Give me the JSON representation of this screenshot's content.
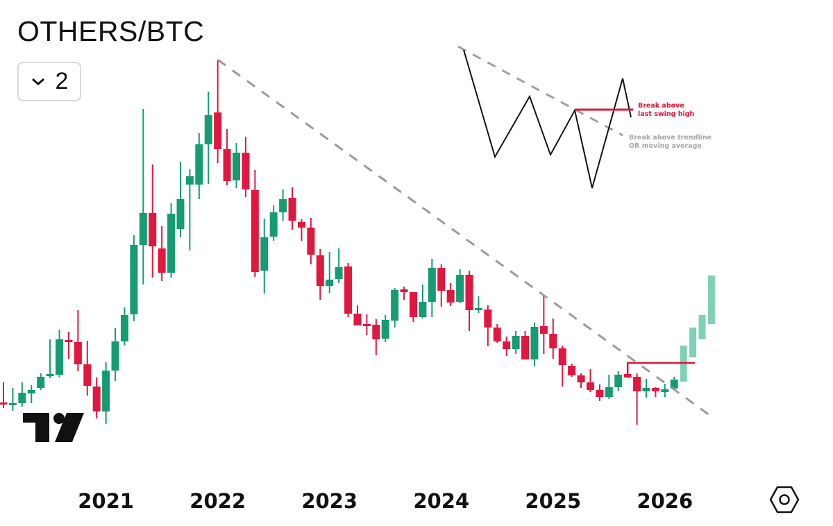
{
  "header": {
    "title": "OTHERS/BTC",
    "interval_value": "2",
    "interval_icon": "chevron-down-icon"
  },
  "footer": {
    "settings_icon": "hexagon-settings-icon",
    "logo": "TradingView"
  },
  "colors": {
    "up": "#169c72",
    "down": "#e0173f",
    "projected": "#80d0b4",
    "trendline": "#9a9a9a",
    "swing_line": "#d8173a"
  },
  "annotations": {
    "swing_high_line1": "Break above",
    "swing_high_line2": "last swing high",
    "trendline_line1": "Break above trendline",
    "trendline_line2": "OR moving average"
  },
  "chart_data": {
    "type": "candlestick",
    "title": "OTHERS/BTC",
    "y_scale": "unlabeled price index",
    "ylim": [
      -59,
      320
    ],
    "grid": false,
    "x_tick_labels": [
      "2021",
      "2022",
      "2023",
      "2024",
      "2025",
      "2026"
    ],
    "start_month": "2020-02",
    "interval": "monthly",
    "ohlc": [
      [
        30,
        44.5,
        26,
        28.5
      ],
      [
        28.5,
        40.5,
        24,
        29.5
      ],
      [
        29.5,
        44.5,
        27,
        37
      ],
      [
        36.5,
        42.5,
        29.5,
        39
      ],
      [
        40.5,
        51,
        39,
        48.5
      ],
      [
        49.5,
        75.5,
        47.5,
        50.5
      ],
      [
        50,
        82.5,
        48,
        75.5
      ],
      [
        75,
        81,
        61.5,
        74.5
      ],
      [
        73.5,
        96.5,
        52.5,
        57.5
      ],
      [
        57.5,
        74.5,
        35,
        42
      ],
      [
        41.5,
        48,
        18.5,
        23.5
      ],
      [
        23.5,
        59,
        14.5,
        53
      ],
      [
        53,
        83.5,
        45.5,
        74
      ],
      [
        74,
        98.5,
        71,
        93
      ],
      [
        93.5,
        150.5,
        88.5,
        143.5
      ],
      [
        143.5,
        241.5,
        115,
        166.5
      ],
      [
        166.5,
        201.5,
        120,
        142.5
      ],
      [
        141,
        157,
        117.5,
        123.5
      ],
      [
        123.5,
        173.5,
        120,
        166
      ],
      [
        155,
        203.5,
        149,
        176.5
      ],
      [
        187,
        198,
        139.5,
        193
      ],
      [
        187,
        224,
        176.5,
        216
      ],
      [
        216,
        254,
        187.5,
        237
      ],
      [
        239,
        277,
        202.5,
        212.5
      ],
      [
        212.5,
        227,
        186.5,
        189.5
      ],
      [
        190,
        217,
        184.5,
        210
      ],
      [
        210,
        221.5,
        178,
        183.5
      ],
      [
        183,
        197.5,
        120.5,
        124
      ],
      [
        125,
        162.5,
        108.5,
        149
      ],
      [
        149.5,
        172,
        146.5,
        167
      ],
      [
        167,
        183.5,
        161,
        176.5
      ],
      [
        177.5,
        185,
        154.5,
        161
      ],
      [
        160,
        162,
        146.5,
        156
      ],
      [
        156,
        163,
        129.5,
        136.5
      ],
      [
        136,
        140.5,
        104,
        114
      ],
      [
        114,
        138.5,
        109,
        118.5
      ],
      [
        119,
        141,
        116,
        127.5
      ],
      [
        128,
        130.5,
        91.5,
        94
      ],
      [
        94,
        100,
        85.5,
        85.5
      ],
      [
        86.5,
        93.5,
        78.5,
        86
      ],
      [
        86,
        90,
        64,
        75.5
      ],
      [
        76,
        93,
        73.5,
        89.5
      ],
      [
        89,
        112.5,
        84,
        111
      ],
      [
        111.5,
        113.5,
        104,
        109.5
      ],
      [
        109.5,
        109.5,
        88,
        91.5
      ],
      [
        91.5,
        115,
        90.5,
        102.5
      ],
      [
        102.5,
        133.5,
        91.5,
        127
      ],
      [
        127,
        129.5,
        99,
        110.5
      ],
      [
        111,
        116,
        99.5,
        102
      ],
      [
        102.5,
        126,
        101.5,
        122
      ],
      [
        122,
        125,
        81.5,
        96.5
      ],
      [
        97.5,
        106.5,
        94.5,
        98
      ],
      [
        97,
        100,
        70.5,
        84
      ],
      [
        84,
        86.5,
        73,
        74
      ],
      [
        74,
        77.5,
        63.5,
        68.5
      ],
      [
        68.5,
        81.5,
        65,
        78
      ],
      [
        78,
        81.5,
        61,
        61
      ],
      [
        61,
        87.5,
        56,
        84.5
      ],
      [
        85,
        107.5,
        65,
        79.5
      ],
      [
        79.5,
        90.5,
        61.5,
        69
      ],
      [
        69,
        71,
        41.5,
        57
      ],
      [
        56.5,
        58,
        48.5,
        49.5
      ],
      [
        49.5,
        51,
        40.5,
        44.5
      ],
      [
        44.5,
        54,
        37.5,
        39
      ],
      [
        39,
        43,
        31,
        34
      ],
      [
        34,
        50,
        32.5,
        41
      ],
      [
        41,
        52.5,
        38,
        50
      ],
      [
        50.5,
        58.5,
        47.5,
        48
      ],
      [
        48.5,
        51,
        14,
        38
      ],
      [
        38,
        47,
        33.5,
        40.5
      ],
      [
        40.5,
        41,
        34,
        38
      ],
      [
        37.5,
        43.5,
        34,
        39.5
      ],
      [
        40,
        48.5,
        39,
        46.5
      ]
    ],
    "projected": [
      [
        45,
        71
      ],
      [
        62.5,
        84
      ],
      [
        75.5,
        93
      ],
      [
        86.5,
        121.5
      ]
    ],
    "trendline": {
      "from": [
        "2022-01",
        277
      ],
      "to": [
        "2026-05",
        21.5
      ],
      "style": "dashed"
    },
    "swing_high_level": {
      "value": 58.5,
      "from": "2025-09",
      "to": "2026-04"
    }
  }
}
